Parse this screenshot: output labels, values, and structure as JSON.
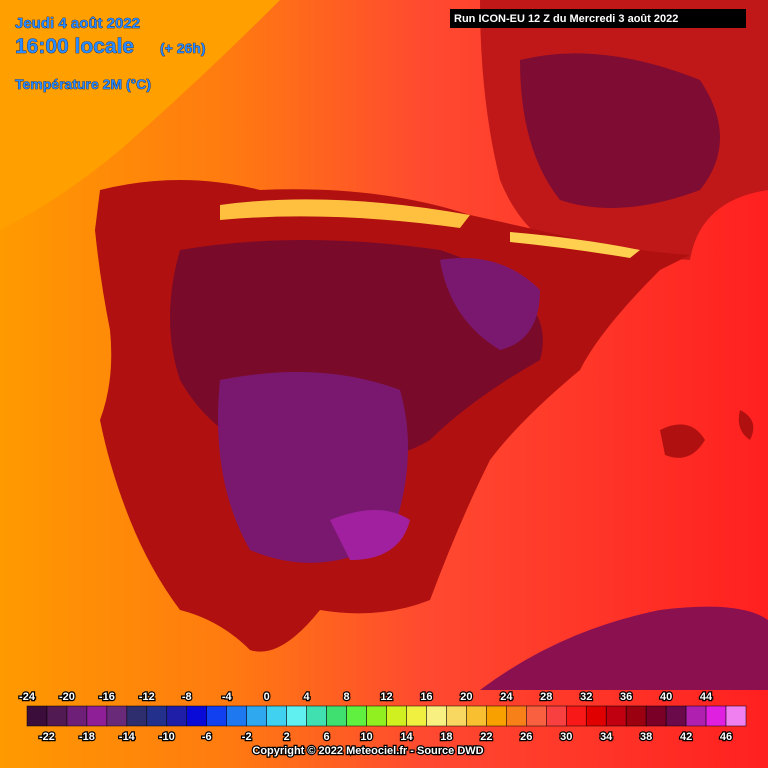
{
  "header": {
    "date": "Jeudi 4 août 2022",
    "time": "16:00 locale",
    "lead": "(+ 26h)",
    "parameter": "Température 2M (°C)",
    "run": "Run ICON-EU 12 Z du Mercredi 3 août 2022"
  },
  "legend": {
    "values": [
      -24,
      -22,
      -20,
      -18,
      -16,
      -14,
      -12,
      -10,
      -8,
      -6,
      -4,
      -2,
      0,
      2,
      4,
      6,
      8,
      10,
      12,
      14,
      16,
      18,
      20,
      22,
      24,
      26,
      28,
      30,
      32,
      34,
      36,
      38,
      40,
      42,
      44,
      46
    ],
    "colors": [
      "#3a0d3a",
      "#521a52",
      "#6e1f78",
      "#8e1f96",
      "#6a2a7a",
      "#2e2e6e",
      "#23308c",
      "#1e1ea8",
      "#0a0ad8",
      "#1040f0",
      "#1e78f0",
      "#30a8f0",
      "#40d0f0",
      "#60f0f0",
      "#40e0b0",
      "#40e070",
      "#60f040",
      "#90f020",
      "#d0f020",
      "#f0f040",
      "#f8f080",
      "#f8d860",
      "#f8c030",
      "#f8a000",
      "#f88018",
      "#f86040",
      "#f84040",
      "#f81818",
      "#e00000",
      "#c00010",
      "#9a0010",
      "#7a0028",
      "#6a0a4a",
      "#b020b0",
      "#e020e0",
      "#f080f0"
    ]
  },
  "footer": {
    "copyright": "Copyright © 2022 Meteociel.fr - Source DWD"
  }
}
